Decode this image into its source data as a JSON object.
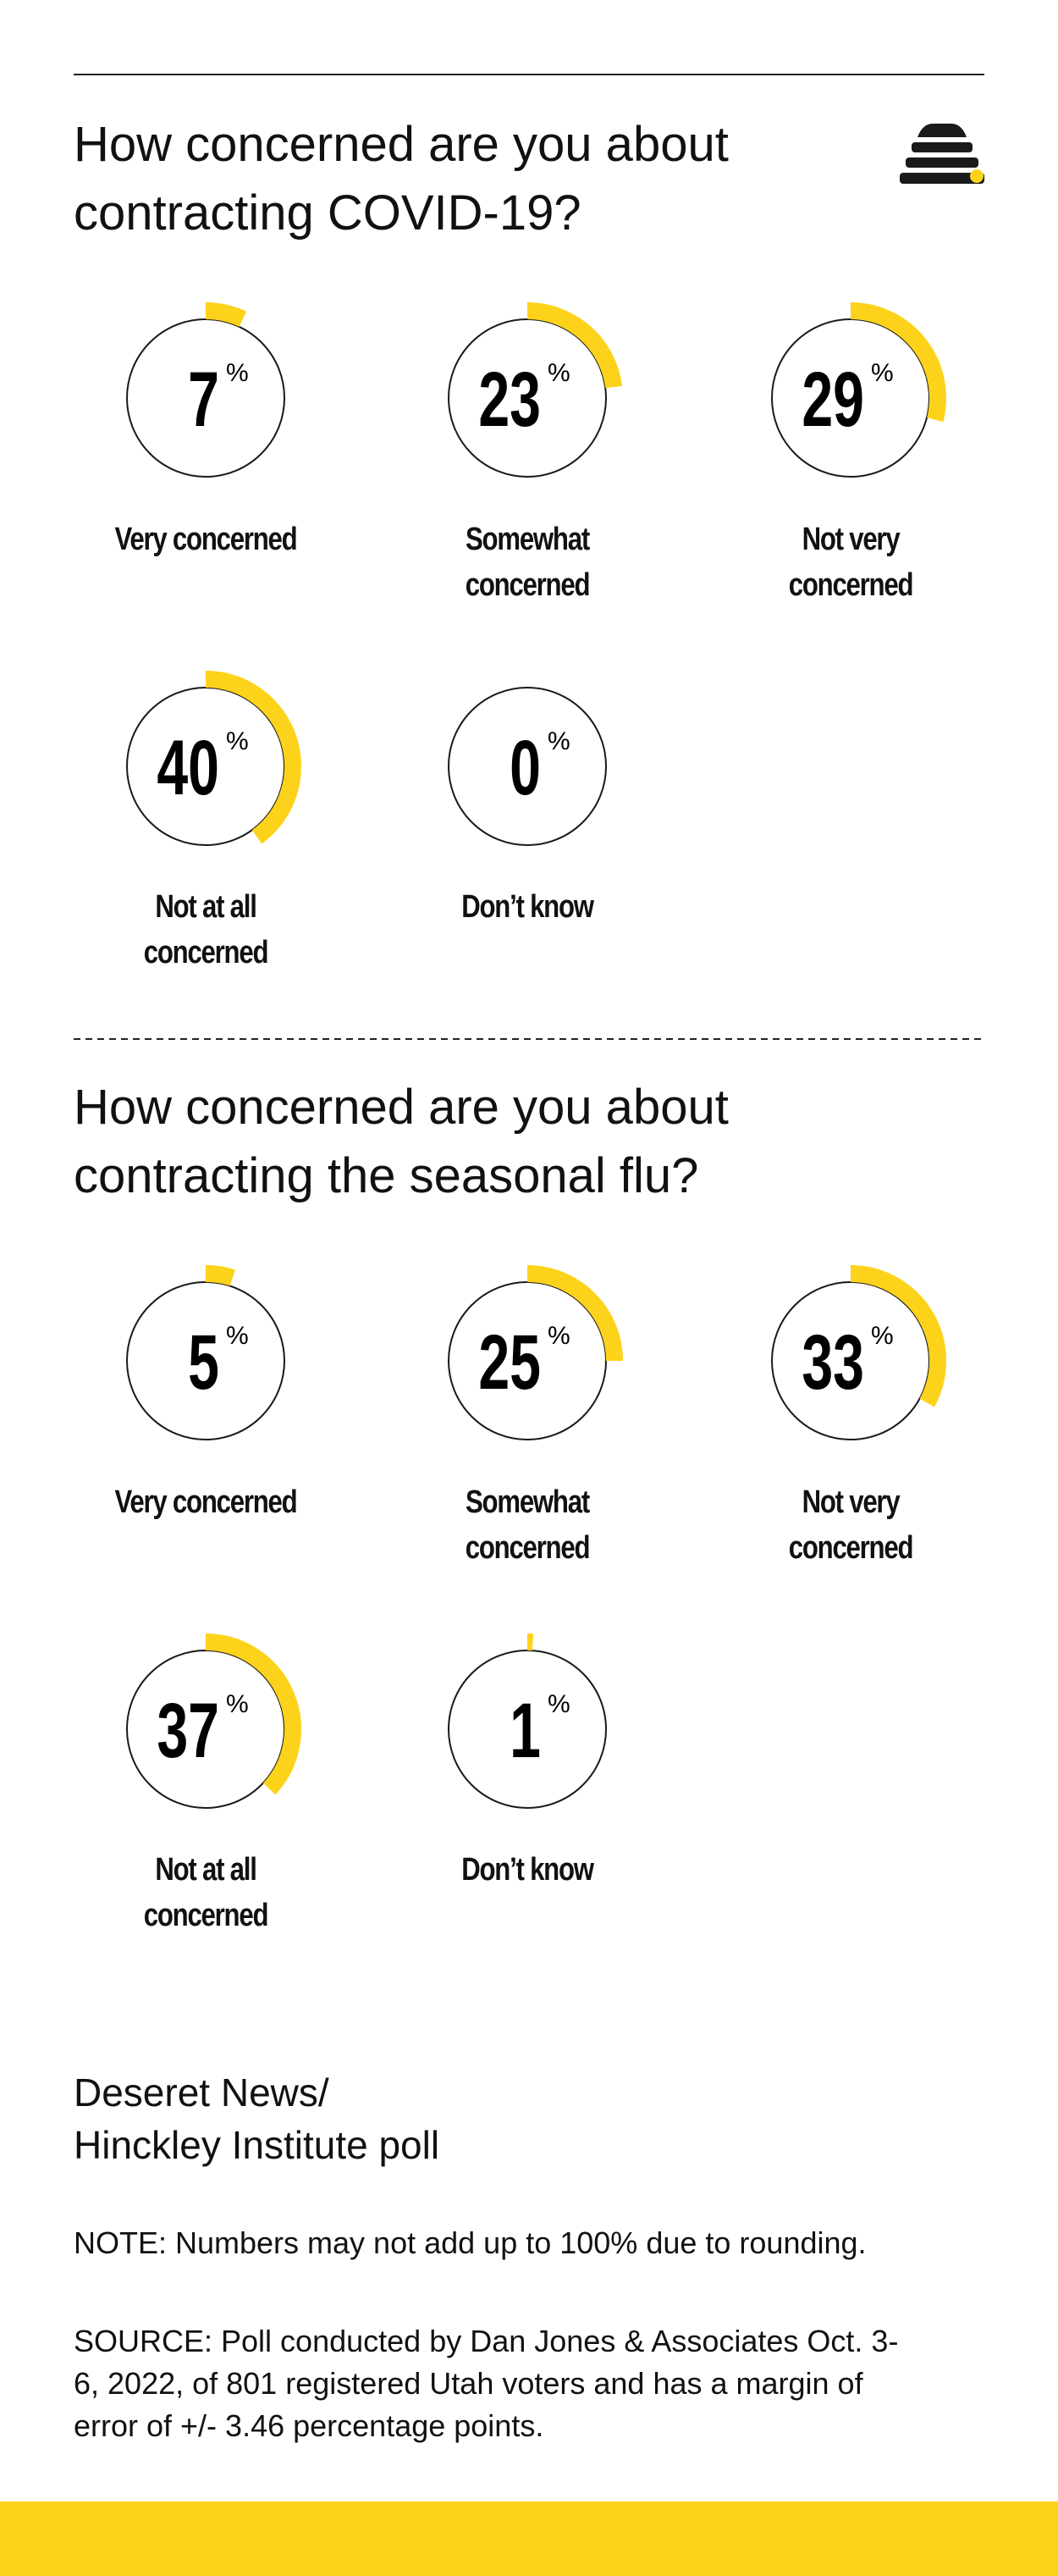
{
  "chart_data": [
    {
      "type": "gauge",
      "title": "How concerned are you about contracting COVID-19?",
      "categories": [
        "Very concerned",
        "Somewhat concerned",
        "Not very concerned",
        "Not at all concerned",
        "Don’t know"
      ],
      "values": [
        7,
        23,
        29,
        40,
        0
      ],
      "unit": "%",
      "color": "#fdd21b",
      "ylim": [
        0,
        100
      ]
    },
    {
      "type": "gauge",
      "title": "How concerned are you about contracting the seasonal flu?",
      "categories": [
        "Very concerned",
        "Somewhat concerned",
        "Not very concerned",
        "Not at all concerned",
        "Don’t know"
      ],
      "values": [
        5,
        25,
        33,
        37,
        1
      ],
      "unit": "%",
      "color": "#fdd21b",
      "ylim": [
        0,
        100
      ]
    }
  ],
  "credit": [
    "Deseret News/",
    "Hinckley Institute poll"
  ],
  "note": "NOTE: Numbers may not add up to 100% due to rounding.",
  "source": "SOURCE: Poll conducted by Dan Jones & Associates Oct. 3-6, 2022, of 801 registered Utah voters and has a margin of error of +/- 3.46 percentage points."
}
